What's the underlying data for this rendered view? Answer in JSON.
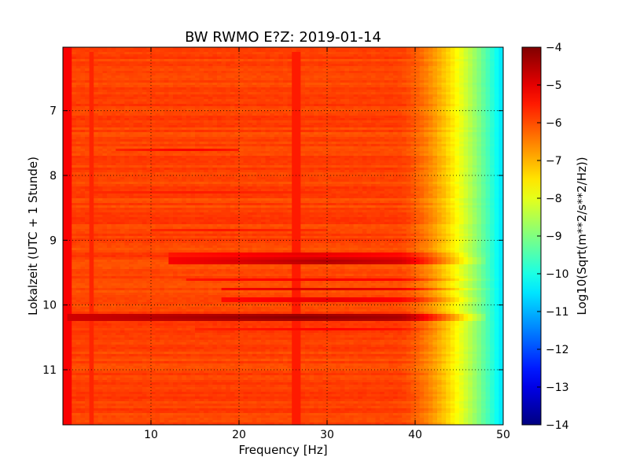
{
  "chart_data": {
    "type": "heatmap",
    "title": "BW RWMO E?Z: 2019-01-14",
    "xlabel": "Frequency [Hz]",
    "ylabel": "Lokalzeit (UTC + 1 Stunde)",
    "colorbar_label": "Log10(Sqrt(m**2/s**2/Hz))",
    "xlim": [
      0,
      50
    ],
    "ylim": [
      11.85,
      6.02
    ],
    "y_inverted": true,
    "x_ticks": [
      10,
      20,
      30,
      40,
      50
    ],
    "x_tick_labels": [
      "10",
      "20",
      "30",
      "40",
      "50"
    ],
    "y_ticks": [
      7,
      8,
      9,
      10,
      11
    ],
    "y_tick_labels": [
      "7",
      "8",
      "9",
      "10",
      "11"
    ],
    "color_range": [
      -14,
      -4
    ],
    "colorbar_ticks": [
      -4,
      -5,
      -6,
      -7,
      -8,
      -9,
      -10,
      -11,
      -12,
      -13,
      -14
    ],
    "colorbar_tick_labels": [
      "−4",
      "−5",
      "−6",
      "−7",
      "−8",
      "−9",
      "−10",
      "−11",
      "−12",
      "−13",
      "−14"
    ],
    "colormap": "jet",
    "grid": true,
    "grid_style": "dotted",
    "baseline_level": -5.9,
    "rolloff": {
      "start_hz": 38,
      "end_hz": 50,
      "level_at_50hz": -10.6
    },
    "low_freq_edge": {
      "end_hz": 0.8,
      "level": -5.2
    },
    "bands": [
      {
        "time": 10.19,
        "half_width": 0.07,
        "fmin": 0.5,
        "fmax": 48,
        "peak_hz": 27,
        "peak_level": -4.1,
        "edge_level": -4.8
      },
      {
        "time": 9.33,
        "half_width": 0.06,
        "fmin": 12,
        "fmax": 48,
        "peak_hz": 30,
        "peak_level": -4.4,
        "edge_level": -5.2
      },
      {
        "time": 9.22,
        "half_width": 0.04,
        "fmin": 12,
        "fmax": 46,
        "peak_hz": 28,
        "peak_level": -4.9,
        "edge_level": -5.5
      },
      {
        "time": 9.62,
        "half_width": 0.02,
        "fmin": 14,
        "fmax": 50,
        "peak_hz": 30,
        "peak_level": -5.0,
        "edge_level": -5.5
      },
      {
        "time": 9.75,
        "half_width": 0.03,
        "fmin": 18,
        "fmax": 50,
        "peak_hz": 30,
        "peak_level": -4.8,
        "edge_level": -5.4
      },
      {
        "time": 9.92,
        "half_width": 0.04,
        "fmin": 18,
        "fmax": 48,
        "peak_hz": 30,
        "peak_level": -4.9,
        "edge_level": -5.5
      },
      {
        "time": 10.38,
        "half_width": 0.03,
        "fmin": 15,
        "fmax": 44,
        "peak_hz": 30,
        "peak_level": -5.2,
        "edge_level": -5.6
      },
      {
        "time": 7.6,
        "half_width": 0.02,
        "fmin": 6,
        "fmax": 20,
        "peak_hz": 14,
        "peak_level": -5.1,
        "edge_level": -5.6
      },
      {
        "time": 8.25,
        "half_width": 0.02,
        "fmin": 3,
        "fmax": 30,
        "peak_hz": 15,
        "peak_level": -5.4,
        "edge_level": -5.7
      },
      {
        "time": 8.85,
        "half_width": 0.02,
        "fmin": 10,
        "fmax": 30,
        "peak_hz": 18,
        "peak_level": -5.4,
        "edge_level": -5.7
      }
    ],
    "vertical_lines": [
      {
        "freq": 26.5,
        "tmin": 6.1,
        "tmax": 11.85,
        "level": -5.5
      },
      {
        "freq": 3.2,
        "tmin": 6.1,
        "tmax": 11.85,
        "level": -5.6
      }
    ]
  }
}
